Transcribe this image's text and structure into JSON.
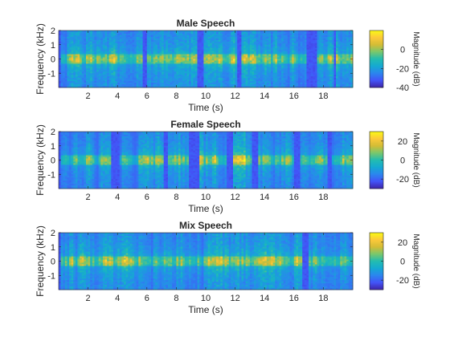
{
  "colormap": [
    "#3e26a8",
    "#4354f8",
    "#2b86ee",
    "#15a9d2",
    "#23bcb0",
    "#7ac76c",
    "#d4bc35",
    "#fcc93a",
    "#f9fb15"
  ],
  "chart_data": [
    {
      "type": "heatmap",
      "title": "Male Speech",
      "xlabel": "Time (s)",
      "ylabel": "Frequency (kHz)",
      "xlim": [
        0,
        20
      ],
      "ylim": [
        -2,
        2
      ],
      "xticks": [
        "2",
        "4",
        "6",
        "8",
        "10",
        "12",
        "14",
        "16",
        "18"
      ],
      "yticks": [
        "2",
        "1",
        "0",
        "-1"
      ],
      "colorbar": {
        "label": "Magnitude (dB)",
        "ticks": [
          "0",
          "-20",
          "-40"
        ],
        "range": [
          -40,
          20
        ]
      },
      "silence_intervals": [
        [
          5.7,
          6.0
        ],
        [
          9.4,
          9.8
        ],
        [
          12.1,
          12.4
        ],
        [
          16.8,
          17.5
        ],
        [
          18.7,
          18.9
        ]
      ],
      "seed": 11
    },
    {
      "type": "heatmap",
      "title": "Female Speech",
      "xlabel": "Time (s)",
      "ylabel": "Frequency (kHz)",
      "xlim": [
        0,
        20
      ],
      "ylim": [
        -2,
        2
      ],
      "xticks": [
        "2",
        "4",
        "6",
        "8",
        "10",
        "12",
        "14",
        "16",
        "18"
      ],
      "yticks": [
        "2",
        "1",
        "0",
        "-1"
      ],
      "colorbar": {
        "label": "Magnitude (dB)",
        "ticks": [
          "20",
          "0",
          "-20"
        ],
        "range": [
          -30,
          30
        ]
      },
      "silence_intervals": [
        [
          3.6,
          4.2
        ],
        [
          7.1,
          7.4
        ],
        [
          8.8,
          9.6
        ],
        [
          11.4,
          11.9
        ],
        [
          13.2,
          13.6
        ],
        [
          16.0,
          16.4
        ],
        [
          18.3,
          18.6
        ]
      ],
      "seed": 23
    },
    {
      "type": "heatmap",
      "title": "Mix Speech",
      "xlabel": "Time (s)",
      "ylabel": "Frequency (kHz)",
      "xlim": [
        0,
        20
      ],
      "ylim": [
        -2,
        2
      ],
      "xticks": [
        "2",
        "4",
        "6",
        "8",
        "10",
        "12",
        "14",
        "16",
        "18"
      ],
      "yticks": [
        "2",
        "1",
        "0",
        "-1"
      ],
      "colorbar": {
        "label": "Magnitude (dB)",
        "ticks": [
          "20",
          "0",
          "-20"
        ],
        "range": [
          -30,
          30
        ]
      },
      "silence_intervals": [
        [
          16.6,
          17.0
        ]
      ],
      "seed": 37
    }
  ]
}
